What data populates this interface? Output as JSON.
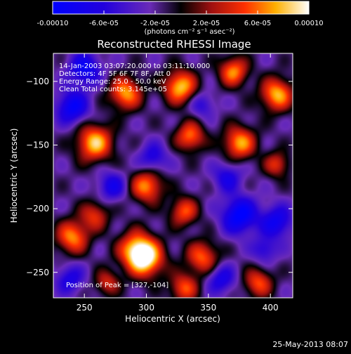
{
  "chart_data": {
    "type": "heatmap",
    "title": "Reconstructed RHESSI Image",
    "xlabel": "Heliocentric X (arcsec)",
    "ylabel": "Heliocentric Y (arcsec)",
    "xlim": [
      225,
      418
    ],
    "ylim": [
      -270,
      -78
    ],
    "x_ticks": [
      250,
      300,
      350,
      400
    ],
    "y_ticks": [
      -100,
      -150,
      -200,
      -250
    ],
    "colorbar": {
      "min": -0.0001,
      "max": 0.0001,
      "tick_labels": [
        "-0.00010",
        "-6.0e-05",
        "-2.0e-05",
        "2.0e-05",
        "6.0e-05",
        "0.00010"
      ],
      "tick_values": [
        -0.0001,
        -6e-05,
        -2e-05,
        2e-05,
        6e-05,
        0.0001
      ],
      "unit_label": "(photons cm⁻² s⁻¹ asec⁻²)"
    },
    "annotations": [
      "14-Jan-2003 03:07:20.000 to 03:11:10.000",
      "Detectors: 4F 5F 6F 7F 8F, Att 0",
      "Energy Range: 25.0 - 50.0 keV",
      "Clean     Total counts: 3.145e+05"
    ],
    "peak_label": "Position of Peak = [327,-104]",
    "sources": [
      {
        "x": 258,
        "y": -148,
        "v": 1.0,
        "s": 10
      },
      {
        "x": 292,
        "y": -232,
        "v": 0.95,
        "s": 10
      },
      {
        "x": 283,
        "y": -109,
        "v": 0.9,
        "s": 9
      },
      {
        "x": 327,
        "y": -104,
        "v": 1.0,
        "s": 9
      },
      {
        "x": 370,
        "y": -92,
        "v": 0.85,
        "s": 8
      },
      {
        "x": 405,
        "y": -110,
        "v": 0.95,
        "s": 9
      },
      {
        "x": 335,
        "y": -143,
        "v": 0.8,
        "s": 8
      },
      {
        "x": 375,
        "y": -148,
        "v": 0.9,
        "s": 9
      },
      {
        "x": 405,
        "y": -165,
        "v": 0.6,
        "s": 7
      },
      {
        "x": 300,
        "y": -182,
        "v": 0.85,
        "s": 9
      },
      {
        "x": 330,
        "y": -202,
        "v": 0.7,
        "s": 8
      },
      {
        "x": 240,
        "y": -222,
        "v": 0.85,
        "s": 9
      },
      {
        "x": 258,
        "y": -205,
        "v": 0.6,
        "s": 8
      },
      {
        "x": 300,
        "y": -240,
        "v": 0.9,
        "s": 10
      },
      {
        "x": 345,
        "y": -238,
        "v": 0.75,
        "s": 9
      },
      {
        "x": 330,
        "y": -262,
        "v": 0.7,
        "s": 8
      },
      {
        "x": 390,
        "y": -258,
        "v": 0.7,
        "s": 8
      },
      {
        "x": 268,
        "y": -258,
        "v": 0.55,
        "s": 7
      },
      {
        "x": 240,
        "y": -120,
        "v": -0.75,
        "s": 9
      },
      {
        "x": 250,
        "y": -90,
        "v": -0.7,
        "s": 9
      },
      {
        "x": 375,
        "y": -205,
        "v": -0.85,
        "s": 10
      },
      {
        "x": 405,
        "y": -210,
        "v": -0.65,
        "s": 9
      },
      {
        "x": 365,
        "y": -175,
        "v": -0.5,
        "s": 8
      },
      {
        "x": 272,
        "y": -182,
        "v": -0.55,
        "s": 8
      },
      {
        "x": 305,
        "y": -160,
        "v": -0.5,
        "s": 8
      },
      {
        "x": 360,
        "y": -255,
        "v": -0.55,
        "s": 8
      },
      {
        "x": 238,
        "y": -255,
        "v": -0.5,
        "s": 8
      },
      {
        "x": 345,
        "y": -118,
        "v": -0.4,
        "s": 7
      },
      {
        "x": 395,
        "y": -232,
        "v": -0.45,
        "s": 7
      }
    ]
  },
  "footer": {
    "timestamp": "25-May-2013 08:07"
  }
}
